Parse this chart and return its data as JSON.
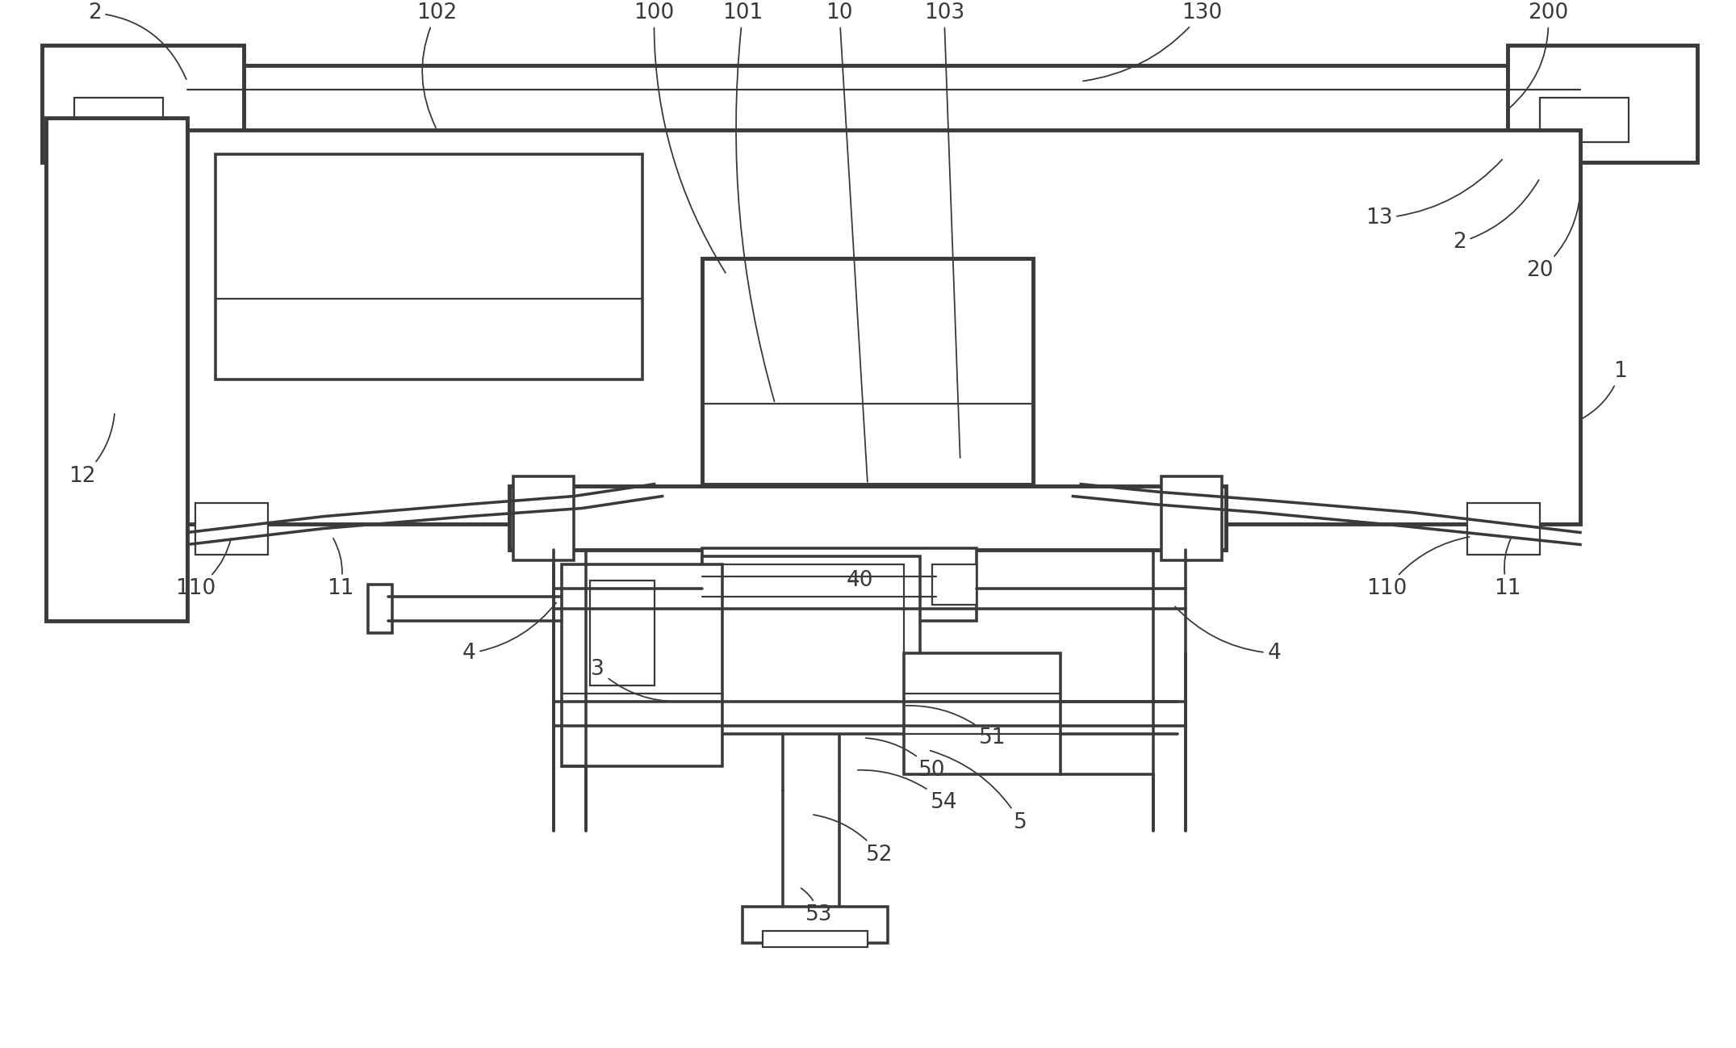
{
  "bg_color": "#ffffff",
  "lc": "#3a3a3a",
  "lw": 1.6,
  "fig_width": 21.51,
  "fig_height": 12.98
}
